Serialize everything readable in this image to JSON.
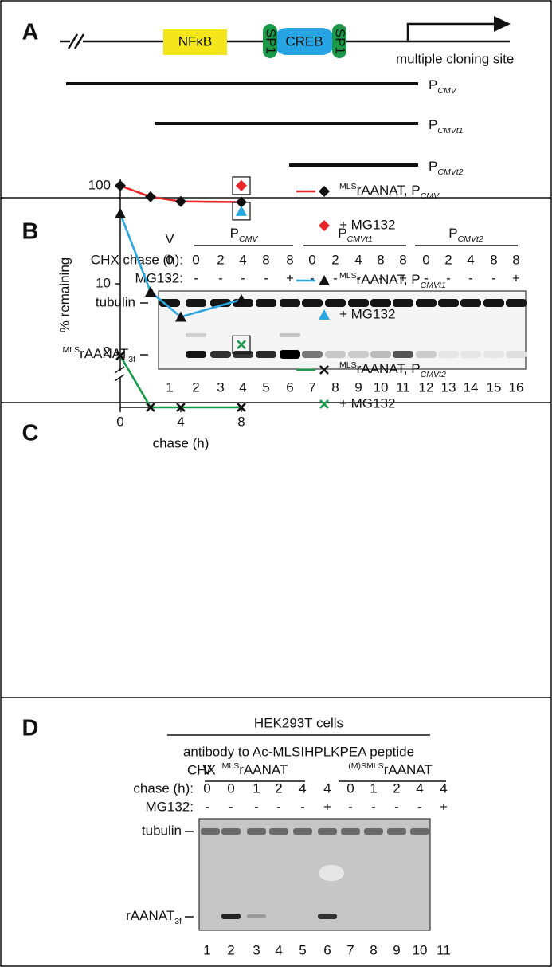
{
  "panel_a": {
    "letter": "A",
    "nfkb": "NFκB",
    "sp1_left": "SP1",
    "creb": "CREB",
    "sp1_right": "SP1",
    "mcs": "multiple cloning site",
    "constructs": [
      {
        "text": "P",
        "sub": "CMV"
      },
      {
        "text": "P",
        "sub": "CMVt1"
      },
      {
        "text": "P",
        "sub": "CMVt2"
      }
    ]
  },
  "panel_b": {
    "letter": "B",
    "groups": [
      {
        "text": "V"
      },
      {
        "text": "P",
        "sub": "CMV"
      },
      {
        "text": "P",
        "sub": "CMVt1"
      },
      {
        "text": "P",
        "sub": "CMVt2"
      }
    ],
    "chase_label": "CHX chase (h):",
    "mg132_label": "MG132:",
    "lanes": [
      {
        "number": 1,
        "chase": 0,
        "mg132": "-"
      },
      {
        "number": 2,
        "chase": 0,
        "mg132": "-"
      },
      {
        "number": 3,
        "chase": 2,
        "mg132": "-"
      },
      {
        "number": 4,
        "chase": 4,
        "mg132": "-"
      },
      {
        "number": 5,
        "chase": 8,
        "mg132": "-"
      },
      {
        "number": 6,
        "chase": 8,
        "mg132": "+"
      },
      {
        "number": 7,
        "chase": 0,
        "mg132": "-"
      },
      {
        "number": 8,
        "chase": 2,
        "mg132": "-"
      },
      {
        "number": 9,
        "chase": 4,
        "mg132": "-"
      },
      {
        "number": 10,
        "chase": 8,
        "mg132": "-"
      },
      {
        "number": 11,
        "chase": 8,
        "mg132": "+"
      },
      {
        "number": 12,
        "chase": 0,
        "mg132": "-"
      },
      {
        "number": 13,
        "chase": 2,
        "mg132": "-"
      },
      {
        "number": 14,
        "chase": 4,
        "mg132": "-"
      },
      {
        "number": 15,
        "chase": 8,
        "mg132": "-"
      },
      {
        "number": 16,
        "chase": 8,
        "mg132": "+"
      }
    ],
    "tubulin": "tubulin",
    "band": {
      "sup": "MLS",
      "text": "rAANAT",
      "sub": "3f"
    }
  },
  "chart_data": {
    "type": "line",
    "panel_letter": "C",
    "y_label": "% remaining",
    "x_label": "chase (h)",
    "x": [
      0,
      2,
      4,
      8
    ],
    "xlim": [
      0,
      8
    ],
    "xticks": [
      0,
      4,
      8
    ],
    "ylim": [
      0.55,
      116
    ],
    "yticks": [
      2,
      10,
      100
    ],
    "log_y": true,
    "mg132_label": "+ MG132",
    "series": [
      {
        "name": "rAANAT,  P",
        "name_sup": "MLS",
        "name_sub": "CMV",
        "color": "#e8262a",
        "marker": "diamond",
        "values": [
          100,
          77,
          69,
          68
        ],
        "mg132": {
          "x": 8,
          "value": 100
        }
      },
      {
        "name": "rAANAT,  P",
        "name_sup": "MLS",
        "name_sub": "CMVt1",
        "color": "#2aa6e0",
        "marker": "triangle",
        "values": [
          52,
          8.3,
          4.6,
          6.9
        ],
        "mg132": {
          "x": 8,
          "value": 55
        }
      },
      {
        "name": "rAANAT,  P",
        "name_sup": "MLS",
        "name_sub": "CMVt2",
        "color": "#1a9a4a",
        "marker": "cross",
        "values": [
          1.85,
          0.55,
          0.55,
          0.55
        ],
        "mg132": {
          "x": 8,
          "value": 2.4
        }
      }
    ]
  },
  "panel_d": {
    "letter": "D",
    "cells": "HEK293T cells",
    "antibody": "antibody to Ac-MLSIHPLKPEA peptide",
    "chx": "CHX",
    "chase_label": "chase (h):",
    "mg132_label": "MG132:",
    "groups": [
      {
        "text": "V"
      },
      {
        "sup": "MLS",
        "text": "rAANAT"
      },
      {
        "sup": "(M)SMLS",
        "text": "rAANAT"
      }
    ],
    "lanes": [
      {
        "number": 1,
        "chase": 0,
        "mg132": "-"
      },
      {
        "number": 2,
        "chase": 0,
        "mg132": "-"
      },
      {
        "number": 3,
        "chase": 1,
        "mg132": "-"
      },
      {
        "number": 4,
        "chase": 2,
        "mg132": "-"
      },
      {
        "number": 5,
        "chase": 4,
        "mg132": "-"
      },
      {
        "number": 6,
        "chase": 4,
        "mg132": "+"
      },
      {
        "number": 7,
        "chase": 0,
        "mg132": "-"
      },
      {
        "number": 8,
        "chase": 1,
        "mg132": "-"
      },
      {
        "number": 9,
        "chase": 2,
        "mg132": "-"
      },
      {
        "number": 10,
        "chase": 4,
        "mg132": "-"
      },
      {
        "number": 11,
        "chase": 4,
        "mg132": "+"
      }
    ],
    "tubulin": "tubulin",
    "band": {
      "text": "rAANAT",
      "sub": "3f"
    }
  }
}
